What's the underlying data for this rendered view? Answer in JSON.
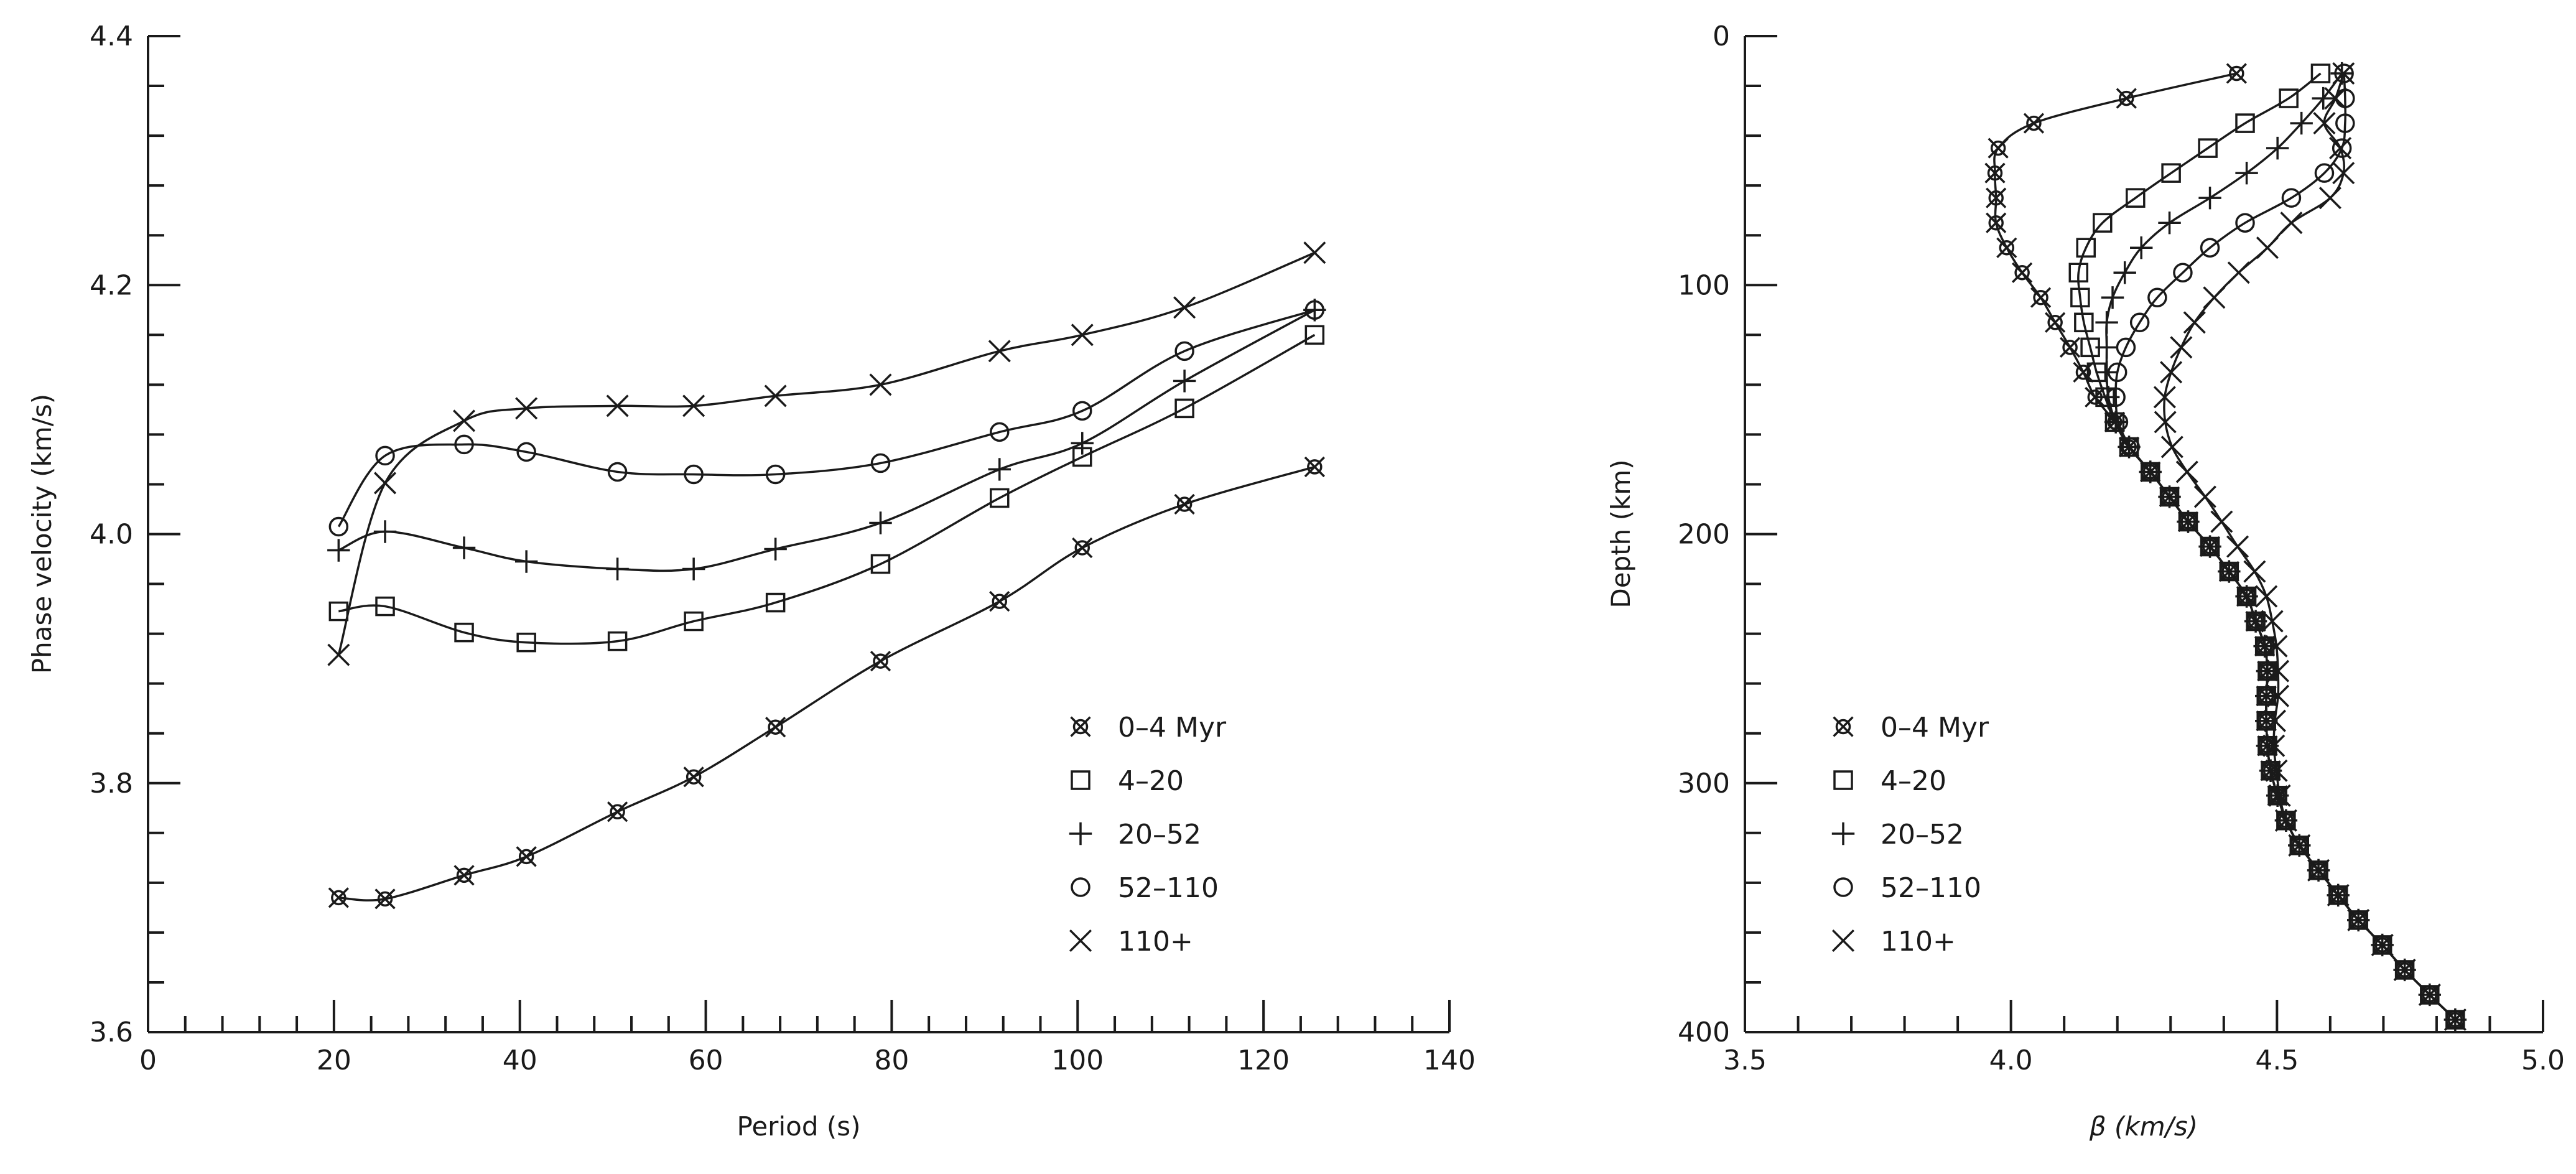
{
  "chart_data": [
    {
      "type": "line",
      "title": "",
      "xlabel": "Period (s)",
      "ylabel": "Phase velocity (km/s)",
      "xlim": [
        0,
        140
      ],
      "ylim": [
        3.6,
        4.4
      ],
      "xticks": [
        0,
        20,
        40,
        60,
        80,
        100,
        120,
        140
      ],
      "xtick_labels": [
        "0",
        "20",
        "40",
        "60",
        "80",
        "100",
        "120",
        "140"
      ],
      "yticks": [
        3.6,
        3.8,
        4.0,
        4.2,
        4.4
      ],
      "ytick_labels": [
        "3.6",
        "3.8",
        "4.0",
        "4.2",
        "4.4"
      ],
      "x_minor_step": 4,
      "y_minor_step": 0.04,
      "grid": false,
      "legend_position": "lower-right",
      "x": [
        20.5,
        25.5,
        34,
        40.7,
        50.5,
        58.7,
        67.5,
        78.8,
        91.6,
        100.5,
        111.5,
        125.5
      ],
      "series": [
        {
          "name": "0–4 Myr",
          "marker": "circle-x",
          "values": [
            3.708,
            3.707,
            3.726,
            3.741,
            3.777,
            3.805,
            3.845,
            3.898,
            3.946,
            3.989,
            4.024,
            4.054
          ]
        },
        {
          "name": "4–20",
          "marker": "square",
          "values": [
            3.938,
            3.942,
            3.921,
            3.913,
            3.914,
            3.93,
            3.945,
            3.976,
            4.029,
            4.062,
            4.101,
            4.16
          ]
        },
        {
          "name": "20–52",
          "marker": "plus",
          "values": [
            3.987,
            4.002,
            3.989,
            3.978,
            3.972,
            3.972,
            3.988,
            4.009,
            4.052,
            4.073,
            4.123,
            4.18
          ]
        },
        {
          "name": "52–110",
          "marker": "circle",
          "values": [
            4.006,
            4.063,
            4.072,
            4.066,
            4.05,
            4.048,
            4.048,
            4.057,
            4.082,
            4.099,
            4.147,
            4.18
          ]
        },
        {
          "name": "110+",
          "marker": "x",
          "values": [
            3.903,
            4.041,
            4.091,
            4.101,
            4.103,
            4.103,
            4.111,
            4.12,
            4.147,
            4.16,
            4.182,
            4.226
          ]
        }
      ]
    },
    {
      "type": "line",
      "title": "",
      "xlabel": "β (km/s)",
      "ylabel": "Depth (km)",
      "xlim": [
        3.5,
        5.0
      ],
      "ylim": [
        400,
        0
      ],
      "xticks": [
        3.5,
        4.0,
        4.5,
        5.0
      ],
      "xtick_labels": [
        "3.5",
        "4.0",
        "4.5",
        "5.0"
      ],
      "yticks": [
        0,
        100,
        200,
        300,
        400
      ],
      "ytick_labels": [
        "0",
        "100",
        "200",
        "300",
        "400"
      ],
      "x_minor_step": 0.1,
      "y_minor_step": 20,
      "grid": false,
      "legend_position": "lower-left",
      "depth": [
        15,
        25,
        35,
        45,
        55,
        65,
        75,
        85,
        95,
        105,
        115,
        125,
        135,
        145,
        155,
        165,
        175,
        185,
        195,
        205,
        215,
        225,
        235,
        245,
        255,
        265,
        275,
        285,
        295,
        305,
        315,
        325,
        335,
        345,
        355,
        365,
        375,
        385,
        395
      ],
      "series": [
        {
          "name": "0–4 Myr",
          "marker": "circle-x",
          "values": [
            4.424,
            4.217,
            4.043,
            3.976,
            3.97,
            3.972,
            3.972,
            3.992,
            4.021,
            4.056,
            4.083,
            4.111,
            4.136,
            4.158,
            4.195,
            4.222,
            4.262,
            4.298,
            4.333,
            4.374,
            4.41,
            4.443,
            4.46,
            4.477,
            4.482,
            4.48,
            4.48,
            4.482,
            4.488,
            4.501,
            4.517,
            4.542,
            4.578,
            4.615,
            4.653,
            4.698,
            4.74,
            4.787,
            4.835
          ]
        },
        {
          "name": "4–20",
          "marker": "square",
          "values": [
            4.582,
            4.522,
            4.44,
            4.37,
            4.301,
            4.234,
            4.172,
            4.141,
            4.127,
            4.13,
            4.137,
            4.149,
            4.161,
            4.177,
            4.195,
            4.222,
            4.262,
            4.298,
            4.333,
            4.374,
            4.41,
            4.443,
            4.46,
            4.477,
            4.482,
            4.48,
            4.48,
            4.482,
            4.488,
            4.501,
            4.517,
            4.542,
            4.578,
            4.615,
            4.653,
            4.698,
            4.74,
            4.787,
            4.835
          ]
        },
        {
          "name": "20–52",
          "marker": "plus",
          "values": [
            4.622,
            4.587,
            4.546,
            4.501,
            4.443,
            4.374,
            4.298,
            4.245,
            4.214,
            4.191,
            4.18,
            4.18,
            4.18,
            4.183,
            4.197,
            4.222,
            4.262,
            4.298,
            4.333,
            4.374,
            4.41,
            4.443,
            4.46,
            4.477,
            4.482,
            4.48,
            4.48,
            4.482,
            4.488,
            4.501,
            4.517,
            4.542,
            4.578,
            4.615,
            4.653,
            4.698,
            4.74,
            4.787,
            4.835
          ]
        },
        {
          "name": "52–110",
          "marker": "circle",
          "values": [
            4.626,
            4.628,
            4.628,
            4.622,
            4.589,
            4.527,
            4.44,
            4.374,
            4.323,
            4.275,
            4.242,
            4.216,
            4.2,
            4.197,
            4.202,
            4.224,
            4.262,
            4.298,
            4.333,
            4.374,
            4.41,
            4.443,
            4.46,
            4.477,
            4.482,
            4.48,
            4.48,
            4.482,
            4.488,
            4.501,
            4.517,
            4.542,
            4.578,
            4.615,
            4.653,
            4.698,
            4.74,
            4.787,
            4.835
          ]
        },
        {
          "name": "110+",
          "marker": "x",
          "values": [
            4.625,
            4.61,
            4.589,
            4.619,
            4.625,
            4.6,
            4.527,
            4.482,
            4.428,
            4.382,
            4.345,
            4.32,
            4.301,
            4.289,
            4.29,
            4.303,
            4.331,
            4.365,
            4.396,
            4.426,
            4.458,
            4.48,
            4.491,
            4.499,
            4.502,
            4.502,
            4.496,
            4.494,
            4.499,
            4.505,
            4.517,
            4.542,
            4.578,
            4.615,
            4.653,
            4.698,
            4.74,
            4.787,
            4.835
          ]
        }
      ]
    }
  ]
}
